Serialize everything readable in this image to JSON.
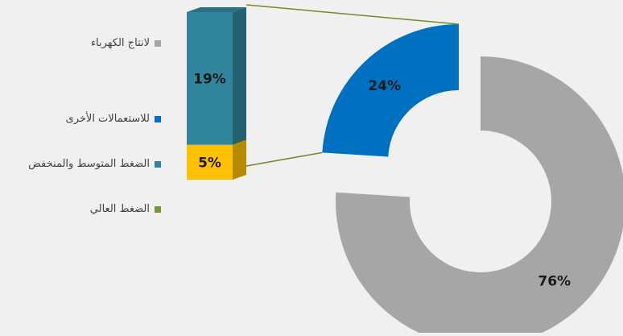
{
  "chart_data": {
    "type": "pie",
    "subtype": "doughnut-with-stacked-bar-breakdown",
    "main": [
      {
        "name": "لانتاج الكهرباء",
        "value": 76,
        "label": "76%",
        "color": "#a6a6a6"
      },
      {
        "name": "للاستعمالات الأخرى",
        "value": 24,
        "label": "24%",
        "color": "#0070c0"
      }
    ],
    "breakdown_of": "للاستعمالات الأخرى",
    "breakdown": [
      {
        "name": "الضغط العالي",
        "value": 5,
        "label": "5%",
        "color": "#ffc000"
      },
      {
        "name": "الضغط المتوسط والمنخفض",
        "value": 19,
        "label": "19%",
        "color": "#31859c"
      }
    ],
    "legend": {
      "position": "left",
      "items": [
        {
          "label": "لانتاج الكهرباء",
          "color": "#a6a6a6"
        },
        {
          "label": "للاستعمالات الأخرى",
          "color": "#0070c0"
        },
        {
          "label": "الضغط المتوسط والمنخفض",
          "color": "#31849b"
        },
        {
          "label": "الضغط العالي",
          "color": "#77933c"
        }
      ]
    },
    "connector_color": "#6b8e23"
  }
}
